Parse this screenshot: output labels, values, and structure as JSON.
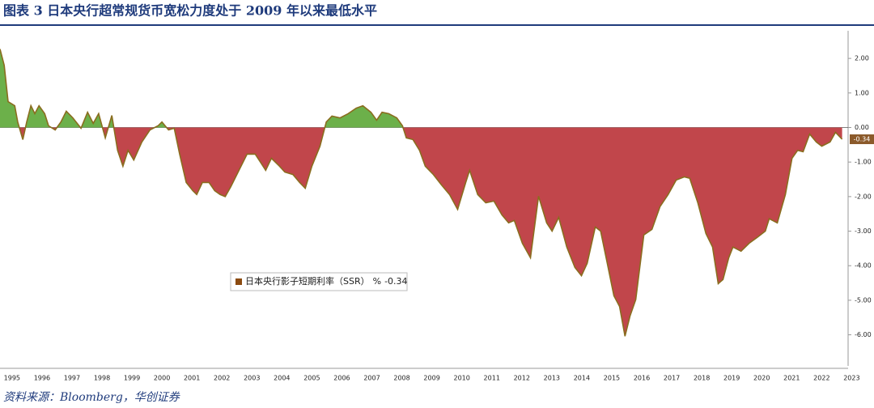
{
  "header": {
    "title": "图表 3 日本央行超常规货币宽松力度处于 2009 年以来最低水平"
  },
  "chart_data": {
    "type": "area",
    "series": [
      {
        "name": "日本央行影子短期利率（SSR）",
        "unit": "%",
        "color": "#8a6d1f",
        "pos_color": "#6cb04a",
        "neg_color": "#c1464b",
        "x": [
          1995.1,
          1995.24,
          1995.37,
          1995.59,
          1995.69,
          1995.86,
          1995.99,
          1996.13,
          1996.26,
          1996.4,
          1996.59,
          1996.72,
          1996.94,
          1997.13,
          1997.31,
          1997.53,
          1997.8,
          1998.02,
          1998.21,
          1998.39,
          1998.61,
          1998.83,
          1999.02,
          1999.2,
          1999.37,
          1999.56,
          1999.83,
          2000.1,
          2000.37,
          2000.5,
          2000.72,
          2000.91,
          2001.09,
          2001.31,
          2001.53,
          2001.66,
          2001.85,
          2002.07,
          2002.26,
          2002.44,
          2002.61,
          2002.8,
          2003.07,
          2003.34,
          2003.61,
          2003.79,
          2003.96,
          2004.15,
          2004.42,
          2004.6,
          2004.87,
          2005.09,
          2005.28,
          2005.5,
          2005.77,
          2005.98,
          2006.17,
          2006.44,
          2006.71,
          2006.98,
          2007.2,
          2007.47,
          2007.66,
          2007.84,
          2008.06,
          2008.33,
          2008.52,
          2008.65,
          2008.87,
          2009.09,
          2009.28,
          2009.55,
          2009.82,
          2010.09,
          2010.36,
          2010.63,
          2010.76,
          2011.03,
          2011.3,
          2011.57,
          2011.84,
          2012.06,
          2012.25,
          2012.52,
          2012.79,
          2013.06,
          2013.33,
          2013.51,
          2013.73,
          2014.0,
          2014.27,
          2014.49,
          2014.68,
          2014.95,
          2015.13,
          2015.35,
          2015.57,
          2015.76,
          2015.94,
          2016.11,
          2016.3,
          2016.57,
          2016.84,
          2017.11,
          2017.38,
          2017.65,
          2017.92,
          2018.1,
          2018.37,
          2018.64,
          2018.86,
          2019.05,
          2019.21,
          2019.4,
          2019.54,
          2019.81,
          2020.08,
          2020.35,
          2020.62,
          2020.75,
          2021.02,
          2021.29,
          2021.51,
          2021.7,
          2021.88,
          2022.1,
          2022.32,
          2022.5,
          2022.78,
          2022.96,
          2023.18
        ],
        "values": [
          2.27,
          1.8,
          0.75,
          0.63,
          0.16,
          -0.35,
          0.16,
          0.63,
          0.4,
          0.63,
          0.4,
          0.05,
          -0.07,
          0.16,
          0.47,
          0.28,
          -0.02,
          0.44,
          0.12,
          0.4,
          -0.3,
          0.35,
          -0.66,
          -1.12,
          -0.66,
          -0.94,
          -0.42,
          -0.07,
          0.05,
          0.16,
          -0.07,
          -0.02,
          -0.77,
          -1.59,
          -1.83,
          -1.94,
          -1.59,
          -1.59,
          -1.83,
          -1.94,
          -2.0,
          -1.71,
          -1.24,
          -0.77,
          -0.77,
          -1.01,
          -1.24,
          -0.89,
          -1.12,
          -1.29,
          -1.36,
          -1.59,
          -1.76,
          -1.12,
          -0.54,
          0.16,
          0.33,
          0.28,
          0.4,
          0.56,
          0.63,
          0.44,
          0.21,
          0.44,
          0.4,
          0.28,
          0.05,
          -0.3,
          -0.35,
          -0.66,
          -1.12,
          -1.36,
          -1.66,
          -1.94,
          -2.37,
          -1.59,
          -1.24,
          -1.94,
          -2.18,
          -2.13,
          -2.53,
          -2.76,
          -2.69,
          -3.35,
          -3.77,
          -1.99,
          -2.76,
          -3.0,
          -2.6,
          -3.46,
          -4.05,
          -4.29,
          -3.93,
          -2.88,
          -3.0,
          -3.93,
          -4.87,
          -5.18,
          -6.04,
          -5.45,
          -4.98,
          -3.11,
          -2.95,
          -2.29,
          -1.94,
          -1.52,
          -1.43,
          -1.47,
          -2.18,
          -3.07,
          -3.46,
          -4.52,
          -4.4,
          -3.77,
          -3.46,
          -3.58,
          -3.35,
          -3.18,
          -3.0,
          -2.64,
          -2.76,
          -1.94,
          -0.89,
          -0.66,
          -0.7,
          -0.19,
          -0.42,
          -0.54,
          -0.42,
          -0.14,
          -0.34
        ]
      }
    ],
    "xlim": [
      1995.1,
      2023.3
    ],
    "xticks": [
      {
        "value": 1995.5,
        "label": "1995"
      },
      {
        "value": 1996.5,
        "label": "1996"
      },
      {
        "value": 1997.5,
        "label": "1997"
      },
      {
        "value": 1998.5,
        "label": "1998"
      },
      {
        "value": 1999.5,
        "label": "1999"
      },
      {
        "value": 2000.5,
        "label": "2000"
      },
      {
        "value": 2001.5,
        "label": "2001"
      },
      {
        "value": 2002.5,
        "label": "2002"
      },
      {
        "value": 2003.5,
        "label": "2003"
      },
      {
        "value": 2004.5,
        "label": "2004"
      },
      {
        "value": 2005.5,
        "label": "2005"
      },
      {
        "value": 2006.5,
        "label": "2006"
      },
      {
        "value": 2007.5,
        "label": "2007"
      },
      {
        "value": 2008.5,
        "label": "2008"
      },
      {
        "value": 2009.5,
        "label": "2009"
      },
      {
        "value": 2010.5,
        "label": "2010"
      },
      {
        "value": 2011.5,
        "label": "2011"
      },
      {
        "value": 2012.5,
        "label": "2012"
      },
      {
        "value": 2013.5,
        "label": "2013"
      },
      {
        "value": 2014.5,
        "label": "2014"
      },
      {
        "value": 2015.5,
        "label": "2015"
      },
      {
        "value": 2016.5,
        "label": "2016"
      },
      {
        "value": 2017.5,
        "label": "2017"
      },
      {
        "value": 2018.5,
        "label": "2018"
      },
      {
        "value": 2019.5,
        "label": "2019"
      },
      {
        "value": 2020.5,
        "label": "2020"
      },
      {
        "value": 2021.5,
        "label": "2021"
      },
      {
        "value": 2022.5,
        "label": "2022"
      },
      {
        "value": 2023.5,
        "label": "2023"
      }
    ],
    "ylim": [
      -6.9,
      2.8
    ],
    "yticks": [
      {
        "value": 2,
        "label": "2.00"
      },
      {
        "value": 1,
        "label": "1.00"
      },
      {
        "value": 0,
        "label": "0.00"
      },
      {
        "value": -1,
        "label": "-1.00"
      },
      {
        "value": -2,
        "label": "-2.00"
      },
      {
        "value": -3,
        "label": "-3.00"
      },
      {
        "value": -4,
        "label": "-4.00"
      },
      {
        "value": -5,
        "label": "-5.00"
      },
      {
        "value": -6,
        "label": "-6.00"
      }
    ],
    "y_axis_side": "right",
    "legend": "center-left"
  },
  "footer": {
    "source": "资料来源：Bloomberg，华创证券"
  }
}
